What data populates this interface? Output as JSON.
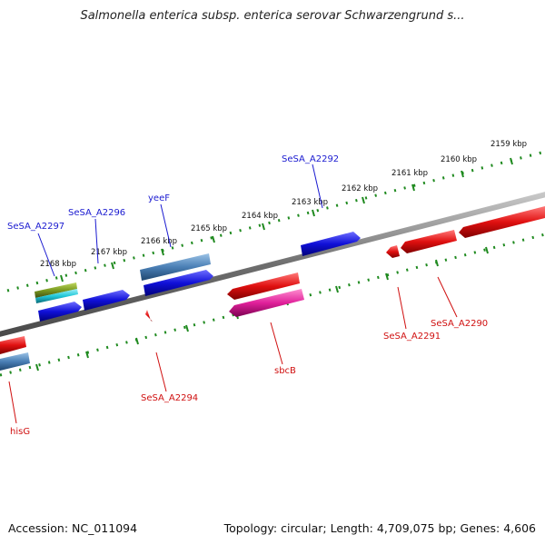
{
  "title": "Salmonella enterica subsp. enterica serovar Schwarzengrund s...",
  "footer": {
    "accession": "Accession: NC_011094",
    "summary": "Topology: circular; Length: 4,709,075 bp; Genes: 4,606"
  },
  "colors": {
    "backbone": "#7a7a7a",
    "tick_track": "#1f8a1f",
    "label_top": "#1a1ad0",
    "label_bottom": "#d01010",
    "gene_blue": "#1010d8",
    "gene_steel": "#4a7fb5",
    "gene_red": "#e01010",
    "gene_pink": "#e0209a",
    "gene_olive": "#7a9a20",
    "gene_cyan": "#20c8d8"
  },
  "scale_labels": [
    "2159 kbp",
    "2160 kbp",
    "2161 kbp",
    "2162 kbp",
    "2163 kbp",
    "2164 kbp",
    "2165 kbp",
    "2166 kbp",
    "2167 kbp",
    "2168 kbp"
  ],
  "gene_labels_top": [
    "SeSA_A2292",
    "yeeF",
    "SeSA_A2296",
    "SeSA_A2297"
  ],
  "gene_labels_bottom": [
    "SeSA_A2290",
    "SeSA_A2291",
    "sbcB",
    "SeSA_A2294",
    "hisG"
  ],
  "features_top": [
    {
      "color": "gene_blue",
      "direction": "forward"
    },
    {
      "color": "gene_blue",
      "direction": "forward"
    },
    {
      "color": "gene_steel",
      "direction": "forward"
    },
    {
      "color": "gene_blue",
      "direction": "forward"
    },
    {
      "color": "gene_olive",
      "direction": "forward"
    },
    {
      "color": "gene_cyan",
      "direction": "forward"
    },
    {
      "color": "gene_blue",
      "direction": "forward"
    }
  ],
  "features_bottom": [
    {
      "color": "gene_red",
      "direction": "reverse"
    },
    {
      "color": "gene_red",
      "direction": "reverse"
    },
    {
      "color": "gene_red",
      "direction": "reverse"
    },
    {
      "color": "gene_red",
      "direction": "reverse"
    },
    {
      "color": "gene_pink",
      "direction": "reverse"
    },
    {
      "color": "gene_red",
      "direction": "reverse"
    },
    {
      "color": "gene_red",
      "direction": "reverse"
    },
    {
      "color": "gene_steel",
      "direction": "reverse"
    }
  ]
}
